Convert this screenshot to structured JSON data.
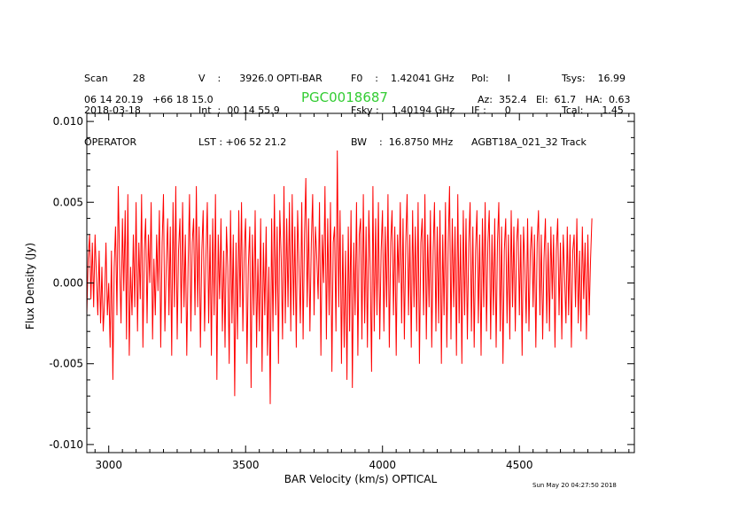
{
  "header": {
    "col1": [
      "Scan        28",
      "2018-03-18",
      "OPERATOR"
    ],
    "col2": [
      "V    :      3926.0 OPTI-BAR",
      "Int  :  00 14 55.9",
      "LST : +06 52 21.2"
    ],
    "col3": [
      "F0    :    1.42041 GHz",
      "Fsky :    1.40194 GHz",
      "BW    :  16.8750 MHz"
    ],
    "col4": [
      "Pol:      I",
      "IF :      0",
      "AGBT18A_021_32 Track"
    ],
    "col5": [
      "Tsys:    16.99",
      "Tcal:      1.45",
      ""
    ],
    "coords": "06 14 20.19   +66 18 15.0",
    "source": "PGC0018687",
    "azel": "Az:  352.4   El:  61.7   HA:  0.63",
    "timestamp": "Sun May 20 04:27:50 2018"
  },
  "chart_data": {
    "type": "line",
    "title": "PGC0018687",
    "xlabel": "BAR Velocity (km/s) OPTICAL",
    "ylabel": "Flux Density (Jy)",
    "xlim": [
      2920,
      4920
    ],
    "ylim": [
      -0.0105,
      0.0105
    ],
    "xticks": [
      3000,
      3500,
      4000,
      4500
    ],
    "xtick_labels": [
      "3000",
      "3500",
      "4000",
      "4500"
    ],
    "yticks": [
      0.01,
      0.005,
      0.0,
      -0.005,
      -0.01
    ],
    "ytick_labels": [
      "0.010",
      "0.005",
      "0.000",
      "-0.005",
      "-0.010"
    ],
    "grid": false,
    "line_color": "#ff0000",
    "series": [
      {
        "x_start": 2920,
        "x_step": 5,
        "y": [
          -0.002,
          0.0015,
          0.003,
          -0.001,
          0.0025,
          -0.0015,
          0.003,
          0.0005,
          -0.002,
          0.002,
          -0.0025,
          0.001,
          -0.003,
          -0.001,
          0.0025,
          -0.002,
          0.0,
          -0.004,
          0.002,
          -0.006,
          0.001,
          0.0035,
          -0.002,
          0.006,
          0.001,
          -0.0025,
          0.004,
          -0.0005,
          0.0045,
          -0.0035,
          0.0055,
          -0.0045,
          0.001,
          -0.002,
          0.003,
          -0.0015,
          0.005,
          -0.003,
          0.0025,
          -0.001,
          0.0055,
          -0.004,
          0.002,
          0.004,
          -0.0025,
          0.003,
          0.0,
          0.005,
          -0.0035,
          0.0015,
          -0.002,
          0.003,
          -0.0005,
          0.0045,
          -0.004,
          0.0025,
          0.0055,
          -0.003,
          0.001,
          0.004,
          -0.002,
          0.0035,
          -0.0045,
          0.005,
          -0.0015,
          0.006,
          -0.0035,
          0.002,
          0.004,
          -0.0025,
          0.005,
          -0.0015,
          0.003,
          -0.0045,
          0.001,
          0.0055,
          -0.003,
          0.0025,
          0.004,
          -0.002,
          0.006,
          -0.0015,
          0.0035,
          -0.004,
          0.002,
          0.0045,
          -0.003,
          0.0015,
          0.005,
          -0.0025,
          0.003,
          -0.0045,
          0.004,
          -0.002,
          0.0055,
          -0.006,
          0.003,
          -0.001,
          0.004,
          -0.003,
          0.002,
          -0.004,
          0.0035,
          0.001,
          -0.005,
          0.0045,
          -0.0025,
          0.003,
          -0.007,
          0.0025,
          -0.0035,
          0.0045,
          -0.0015,
          0.005,
          -0.003,
          0.002,
          0.004,
          -0.005,
          0.001,
          0.0035,
          -0.0065,
          0.003,
          -0.002,
          0.0045,
          -0.004,
          0.0015,
          -0.003,
          0.004,
          -0.0055,
          0.0025,
          -0.002,
          0.0035,
          -0.0045,
          0.001,
          -0.0075,
          0.004,
          -0.003,
          0.0055,
          -0.002,
          0.0035,
          -0.005,
          0.0045,
          0.0015,
          -0.0035,
          0.006,
          -0.0025,
          0.004,
          -0.0015,
          0.005,
          -0.003,
          0.0055,
          -0.002,
          0.0035,
          -0.004,
          0.0045,
          0.001,
          -0.0025,
          0.005,
          -0.0035,
          0.003,
          0.0065,
          -0.0015,
          0.004,
          -0.003,
          0.0025,
          0.0055,
          -0.002,
          0.0035,
          0.0015,
          -0.001,
          0.005,
          -0.0045,
          0.003,
          0.0,
          0.006,
          -0.0035,
          0.004,
          -0.002,
          0.005,
          -0.0055,
          0.0025,
          0.0035,
          -0.003,
          0.0082,
          -0.0015,
          0.0045,
          -0.005,
          0.003,
          -0.004,
          0.002,
          -0.006,
          0.0035,
          -0.003,
          0.0045,
          -0.0065,
          0.0025,
          -0.002,
          0.005,
          -0.0045,
          0.003,
          0.004,
          -0.0035,
          0.0055,
          -0.0025,
          0.0035,
          -0.004,
          0.0045,
          0.001,
          -0.0055,
          0.006,
          -0.003,
          0.004,
          -0.002,
          0.005,
          -0.0035,
          0.002,
          0.0045,
          -0.003,
          0.0035,
          -0.0015,
          0.0055,
          -0.004,
          0.0025,
          0.0045,
          -0.002,
          0.0035,
          -0.0045,
          0.003,
          0.0,
          0.005,
          -0.0025,
          0.004,
          -0.0035,
          0.0025,
          0.0055,
          -0.002,
          0.003,
          -0.004,
          0.0045,
          -0.0015,
          0.0035,
          -0.003,
          0.005,
          -0.005,
          0.0025,
          0.004,
          -0.002,
          0.0055,
          -0.0035,
          0.003,
          -0.0015,
          0.0045,
          -0.004,
          0.002,
          0.005,
          -0.003,
          0.0035,
          -0.0025,
          0.0045,
          -0.005,
          0.003,
          -0.002,
          0.005,
          -0.004,
          0.0025,
          0.006,
          -0.0035,
          0.004,
          -0.0015,
          0.0035,
          -0.0045,
          0.0055,
          -0.0025,
          0.003,
          -0.005,
          0.0045,
          -0.002,
          0.004,
          -0.0035,
          0.0025,
          0.005,
          -0.003,
          0.0035,
          -0.004,
          0.002,
          0.0045,
          -0.0025,
          0.003,
          -0.0045,
          0.004,
          -0.0015,
          0.005,
          -0.003,
          0.0025,
          0.0045,
          -0.0035,
          0.003,
          -0.002,
          0.004,
          -0.004,
          0.0025,
          0.005,
          -0.003,
          0.0035,
          -0.005,
          0.002,
          0.004,
          -0.0025,
          0.003,
          -0.0035,
          0.0045,
          -0.0015,
          0.0035,
          -0.003,
          0.0025,
          0.004,
          -0.002,
          0.003,
          -0.0045,
          0.0035,
          0.001,
          -0.0025,
          0.004,
          -0.003,
          0.002,
          0.0035,
          -0.0015,
          0.003,
          -0.004,
          0.0025,
          0.0045,
          -0.002,
          0.003,
          -0.0035,
          0.0015,
          0.004,
          -0.0025,
          0.0025,
          -0.003,
          0.0035,
          -0.001,
          0.003,
          -0.004,
          0.002,
          0.004,
          -0.002,
          0.0025,
          -0.0035,
          0.003,
          0.0005,
          -0.0025,
          0.0035,
          -0.002,
          0.003,
          -0.004,
          0.002,
          0.003,
          -0.0015,
          0.004,
          -0.0025,
          0.002,
          -0.003,
          0.0035,
          -0.001,
          0.0025,
          -0.0035,
          0.003,
          -0.002,
          0.0015,
          0.004
        ]
      }
    ]
  }
}
